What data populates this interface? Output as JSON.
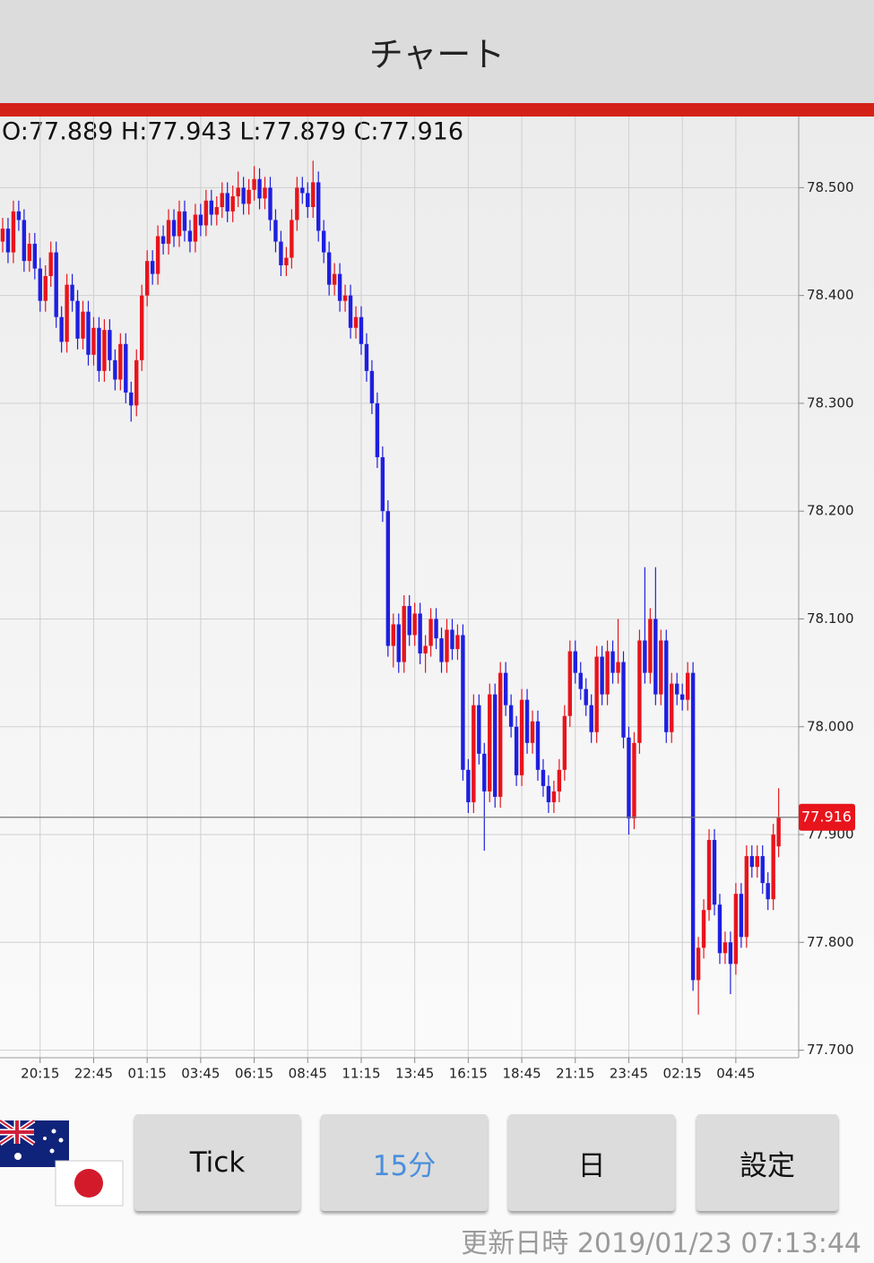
{
  "header": {
    "title": "チャート"
  },
  "chart_data": {
    "type": "candlestick",
    "ohlc_label": "O:77.889 H:77.943 L:77.879 C:77.916",
    "up_color": "#e8141c",
    "down_color": "#1f1fe0",
    "ylim": [
      77.693,
      78.566
    ],
    "yticks": [
      {
        "value": 77.7,
        "label": "77.700"
      },
      {
        "value": 77.8,
        "label": "77.800"
      },
      {
        "value": 77.9,
        "label": "77.900"
      },
      {
        "value": 78.0,
        "label": "78.000"
      },
      {
        "value": 78.1,
        "label": "78.100"
      },
      {
        "value": 78.2,
        "label": "78.200"
      },
      {
        "value": 78.3,
        "label": "78.300"
      },
      {
        "value": 78.4,
        "label": "78.400"
      },
      {
        "value": 78.5,
        "label": "78.500"
      }
    ],
    "grid": true,
    "categories": [
      null,
      null,
      null,
      null,
      null,
      null,
      null,
      "20:15",
      null,
      null,
      null,
      null,
      null,
      null,
      null,
      null,
      null,
      "22:45",
      null,
      null,
      null,
      null,
      null,
      null,
      null,
      null,
      null,
      "01:15",
      null,
      null,
      null,
      null,
      null,
      null,
      null,
      null,
      null,
      "03:45",
      null,
      null,
      null,
      null,
      null,
      null,
      null,
      null,
      null,
      "06:15",
      null,
      null,
      null,
      null,
      null,
      null,
      null,
      null,
      null,
      "08:45",
      null,
      null,
      null,
      null,
      null,
      null,
      null,
      null,
      null,
      "11:15",
      null,
      null,
      null,
      null,
      null,
      null,
      null,
      null,
      null,
      "13:45",
      null,
      null,
      null,
      null,
      null,
      null,
      null,
      null,
      null,
      "16:15",
      null,
      null,
      null,
      null,
      null,
      null,
      null,
      null,
      null,
      "18:45",
      null,
      null,
      null,
      null,
      null,
      null,
      null,
      null,
      null,
      "21:15",
      null,
      null,
      null,
      null,
      null,
      null,
      null,
      null,
      null,
      "23:45",
      null,
      null,
      null,
      null,
      null,
      null,
      null,
      null,
      null,
      "02:15",
      null,
      null,
      null,
      null,
      null,
      null,
      null,
      null,
      null,
      "04:45",
      null,
      null,
      null,
      null,
      null,
      null,
      null,
      null
    ],
    "open": [
      78.45,
      78.462,
      78.44,
      78.478,
      78.47,
      78.432,
      78.448,
      78.425,
      78.395,
      78.418,
      78.44,
      78.38,
      78.357,
      78.41,
      78.395,
      78.36,
      78.385,
      78.345,
      78.37,
      78.33,
      78.368,
      78.34,
      78.322,
      78.355,
      78.31,
      78.298,
      78.34,
      78.4,
      78.432,
      78.42,
      78.455,
      78.448,
      78.47,
      78.455,
      78.478,
      78.46,
      78.45,
      78.475,
      78.465,
      78.488,
      78.475,
      78.482,
      78.495,
      78.478,
      78.492,
      78.5,
      78.485,
      78.498,
      78.508,
      78.49,
      78.5,
      78.47,
      78.45,
      78.428,
      78.435,
      78.47,
      78.5,
      78.495,
      78.482,
      78.505,
      78.46,
      78.44,
      78.41,
      78.42,
      78.395,
      78.4,
      78.37,
      78.38,
      78.355,
      78.33,
      78.3,
      78.25,
      78.2,
      78.075,
      78.095,
      78.06,
      78.112,
      78.085,
      78.105,
      78.068,
      78.075,
      78.1,
      78.082,
      78.06,
      78.09,
      78.072,
      78.085,
      77.96,
      77.93,
      78.02,
      77.975,
      77.94,
      78.03,
      77.935,
      78.05,
      78.02,
      78.0,
      77.955,
      78.025,
      77.985,
      78.005,
      77.96,
      77.945,
      77.93,
      77.94,
      77.96,
      78.01,
      78.07,
      78.05,
      78.035,
      78.02,
      77.995,
      78.065,
      78.03,
      78.07,
      78.05,
      78.06,
      77.99,
      77.915,
      77.985,
      78.08,
      78.05,
      78.1,
      78.03,
      78.08,
      77.995,
      78.04,
      78.03,
      78.025,
      78.05,
      77.765,
      77.795,
      77.83,
      77.895,
      77.835,
      77.79,
      77.8,
      77.78,
      77.845,
      77.805,
      77.88,
      77.87,
      77.88,
      77.855,
      77.84,
      77.889
    ],
    "high": [
      78.472,
      78.472,
      78.488,
      78.488,
      78.48,
      78.458,
      78.458,
      78.435,
      78.428,
      78.45,
      78.45,
      78.39,
      78.42,
      78.42,
      78.405,
      78.395,
      78.395,
      78.38,
      78.38,
      78.378,
      78.378,
      78.35,
      78.365,
      78.365,
      78.32,
      78.35,
      78.41,
      78.442,
      78.442,
      78.465,
      78.465,
      78.48,
      78.48,
      78.488,
      78.488,
      78.47,
      78.485,
      78.485,
      78.498,
      78.498,
      78.492,
      78.505,
      78.505,
      78.502,
      78.515,
      78.51,
      78.508,
      78.52,
      78.518,
      78.51,
      78.51,
      78.48,
      78.46,
      78.445,
      78.48,
      78.51,
      78.51,
      78.505,
      78.525,
      78.515,
      78.47,
      78.45,
      78.43,
      78.43,
      78.41,
      78.41,
      78.39,
      78.39,
      78.365,
      78.34,
      78.31,
      78.26,
      78.21,
      78.105,
      78.105,
      78.122,
      78.122,
      78.115,
      78.115,
      78.085,
      78.11,
      78.11,
      78.092,
      78.1,
      78.1,
      78.095,
      78.095,
      77.97,
      78.03,
      78.03,
      77.985,
      78.04,
      78.04,
      78.06,
      78.06,
      78.03,
      78.01,
      78.035,
      78.035,
      78.015,
      78.015,
      77.97,
      77.955,
      77.95,
      77.97,
      78.02,
      78.08,
      78.08,
      78.06,
      78.045,
      78.03,
      78.075,
      78.075,
      78.08,
      78.08,
      78.1,
      78.07,
      78.0,
      77.995,
      78.09,
      78.148,
      78.11,
      78.148,
      78.09,
      78.09,
      78.05,
      78.05,
      78.04,
      78.06,
      78.06,
      77.805,
      77.84,
      77.905,
      77.905,
      77.845,
      77.81,
      77.81,
      77.855,
      77.855,
      77.89,
      77.89,
      77.89,
      77.89,
      77.865,
      77.91,
      77.943
    ],
    "low": [
      78.44,
      78.43,
      78.43,
      78.46,
      78.422,
      78.422,
      78.415,
      78.385,
      78.385,
      78.408,
      78.37,
      78.347,
      78.347,
      78.385,
      78.35,
      78.35,
      78.335,
      78.335,
      78.32,
      78.32,
      78.33,
      78.312,
      78.312,
      78.3,
      78.283,
      78.288,
      78.33,
      78.39,
      78.41,
      78.41,
      78.438,
      78.438,
      78.445,
      78.445,
      78.45,
      78.44,
      78.44,
      78.455,
      78.455,
      78.465,
      78.465,
      78.472,
      78.468,
      78.468,
      78.482,
      78.475,
      78.475,
      78.488,
      78.48,
      78.48,
      78.46,
      78.44,
      78.418,
      78.418,
      78.425,
      78.46,
      78.485,
      78.472,
      78.472,
      78.45,
      78.43,
      78.4,
      78.4,
      78.385,
      78.385,
      78.36,
      78.36,
      78.345,
      78.32,
      78.29,
      78.24,
      78.19,
      78.065,
      78.055,
      78.05,
      78.05,
      78.075,
      78.075,
      78.058,
      78.05,
      78.065,
      78.072,
      78.05,
      78.05,
      78.062,
      78.062,
      77.95,
      77.92,
      77.92,
      77.965,
      77.885,
      77.93,
      77.925,
      77.925,
      78.01,
      77.99,
      77.945,
      77.945,
      77.975,
      77.975,
      77.95,
      77.935,
      77.92,
      77.92,
      77.93,
      77.95,
      78.0,
      78.04,
      78.025,
      78.01,
      77.985,
      77.985,
      78.02,
      78.02,
      78.04,
      78.04,
      77.98,
      77.9,
      77.905,
      77.975,
      78.04,
      78.04,
      78.02,
      78.02,
      77.985,
      77.985,
      78.02,
      78.015,
      78.015,
      77.755,
      77.733,
      77.785,
      77.82,
      77.825,
      77.78,
      77.78,
      77.752,
      77.77,
      77.795,
      77.795,
      77.86,
      77.86,
      77.845,
      77.83,
      77.83,
      77.879
    ],
    "close": [
      78.462,
      78.44,
      78.478,
      78.47,
      78.432,
      78.448,
      78.425,
      78.395,
      78.418,
      78.44,
      78.38,
      78.357,
      78.41,
      78.395,
      78.36,
      78.385,
      78.345,
      78.37,
      78.33,
      78.368,
      78.34,
      78.322,
      78.355,
      78.31,
      78.298,
      78.34,
      78.4,
      78.432,
      78.42,
      78.455,
      78.448,
      78.47,
      78.455,
      78.478,
      78.46,
      78.45,
      78.475,
      78.465,
      78.488,
      78.475,
      78.482,
      78.495,
      78.478,
      78.492,
      78.5,
      78.485,
      78.498,
      78.508,
      78.49,
      78.5,
      78.47,
      78.45,
      78.428,
      78.435,
      78.47,
      78.5,
      78.495,
      78.482,
      78.505,
      78.46,
      78.44,
      78.41,
      78.42,
      78.395,
      78.4,
      78.37,
      78.38,
      78.355,
      78.33,
      78.3,
      78.25,
      78.2,
      78.075,
      78.095,
      78.06,
      78.112,
      78.085,
      78.105,
      78.068,
      78.075,
      78.1,
      78.082,
      78.06,
      78.09,
      78.072,
      78.085,
      77.96,
      77.93,
      78.02,
      77.975,
      77.94,
      78.03,
      77.935,
      78.05,
      78.02,
      78.0,
      77.955,
      78.025,
      77.985,
      78.005,
      77.96,
      77.945,
      77.93,
      77.94,
      77.96,
      78.01,
      78.07,
      78.05,
      78.035,
      78.02,
      77.995,
      78.065,
      78.03,
      78.07,
      78.05,
      78.06,
      77.99,
      77.915,
      77.985,
      78.08,
      78.05,
      78.1,
      78.03,
      78.08,
      77.995,
      78.04,
      78.03,
      78.025,
      78.05,
      77.765,
      77.795,
      77.83,
      77.895,
      77.835,
      77.79,
      77.8,
      77.78,
      77.845,
      77.805,
      77.88,
      77.87,
      77.88,
      77.855,
      77.84,
      77.9,
      77.916
    ]
  },
  "buttons": [
    "Tick",
    "15分",
    "日",
    "設定"
  ],
  "footer": {
    "update_label": "更新日時",
    "timestamp": "2019/01/23 07:13:44"
  }
}
